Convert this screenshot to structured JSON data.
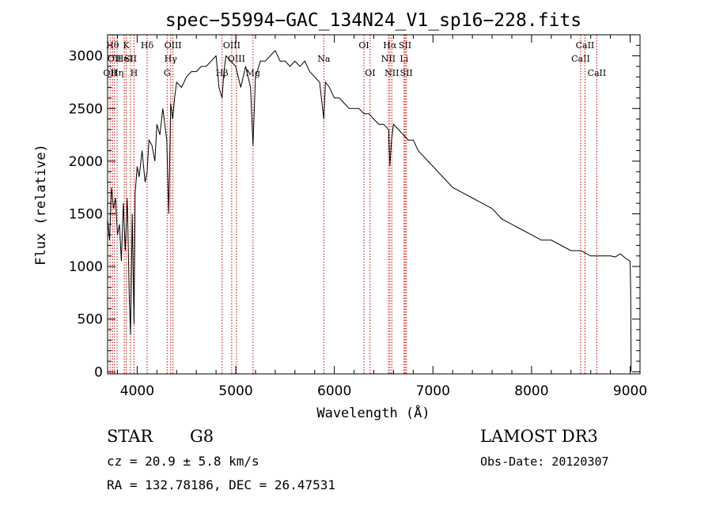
{
  "chart_data": {
    "type": "line",
    "title": "spec−55994−GAC_134N24_V1_sp16−228.fits",
    "xlabel": "Wavelength (Å)",
    "ylabel": "Flux (relative)",
    "xlim": [
      3700,
      9100
    ],
    "ylim": [
      -20,
      3200
    ],
    "xticks": [
      4000,
      5000,
      6000,
      7000,
      8000,
      9000
    ],
    "yticks": [
      0,
      500,
      1000,
      1500,
      2000,
      2500,
      3000
    ],
    "grid": false,
    "series": [
      {
        "name": "spectrum",
        "x": [
          3700,
          3720,
          3740,
          3760,
          3780,
          3800,
          3820,
          3840,
          3860,
          3880,
          3900,
          3920,
          3933,
          3950,
          3968,
          3980,
          4000,
          4020,
          4050,
          4080,
          4101,
          4120,
          4150,
          4180,
          4200,
          4230,
          4260,
          4300,
          4320,
          4340,
          4360,
          4380,
          4400,
          4450,
          4500,
          4550,
          4600,
          4650,
          4700,
          4750,
          4800,
          4830,
          4861,
          4880,
          4900,
          4950,
          5000,
          5050,
          5100,
          5150,
          5175,
          5200,
          5250,
          5300,
          5350,
          5400,
          5450,
          5500,
          5550,
          5600,
          5650,
          5700,
          5750,
          5800,
          5850,
          5893,
          5910,
          5950,
          6000,
          6050,
          6100,
          6150,
          6200,
          6250,
          6300,
          6350,
          6400,
          6450,
          6500,
          6550,
          6563,
          6580,
          6600,
          6650,
          6700,
          6750,
          6800,
          6850,
          6900,
          6950,
          7000,
          7050,
          7100,
          7150,
          7200,
          7300,
          7400,
          7500,
          7600,
          7700,
          7800,
          7900,
          8000,
          8100,
          8200,
          8300,
          8400,
          8500,
          8600,
          8700,
          8800,
          8850,
          8900,
          8950,
          9000,
          9005,
          9010
        ],
        "y": [
          1450,
          1250,
          1750,
          1550,
          1650,
          1300,
          1400,
          1050,
          1600,
          1150,
          1650,
          700,
          350,
          1500,
          450,
          1700,
          1950,
          1850,
          2100,
          1800,
          1900,
          2200,
          2150,
          2000,
          2350,
          2250,
          2500,
          2200,
          1500,
          2550,
          2400,
          2600,
          2750,
          2700,
          2800,
          2850,
          2850,
          2900,
          2900,
          2950,
          3000,
          2700,
          2600,
          2850,
          3000,
          2950,
          2900,
          2700,
          2900,
          2700,
          2150,
          2800,
          2950,
          2950,
          3000,
          3050,
          2950,
          2950,
          2900,
          2950,
          2900,
          2950,
          2850,
          2800,
          2750,
          2400,
          2750,
          2700,
          2600,
          2600,
          2550,
          2500,
          2500,
          2500,
          2450,
          2450,
          2400,
          2350,
          2350,
          2300,
          1950,
          2200,
          2350,
          2300,
          2250,
          2200,
          2200,
          2100,
          2050,
          2000,
          1950,
          1900,
          1850,
          1800,
          1750,
          1700,
          1650,
          1600,
          1550,
          1450,
          1400,
          1350,
          1300,
          1250,
          1250,
          1200,
          1150,
          1150,
          1100,
          1100,
          1100,
          1090,
          1120,
          1080,
          1050,
          780,
          0
        ]
      }
    ],
    "line_markers": [
      {
        "wavelength": 3726,
        "label": "OII",
        "row": 2
      },
      {
        "wavelength": 3750,
        "label": "Hθ",
        "row": 0
      },
      {
        "wavelength": 3770,
        "label": "OII",
        "row": 1
      },
      {
        "wavelength": 3797,
        "label": "Hη",
        "row": 2
      },
      {
        "wavelength": 3869,
        "label": "HeI",
        "row": 1
      },
      {
        "wavelength": 3889,
        "label": "K",
        "row": 0
      },
      {
        "wavelength": 3933,
        "label": "SII",
        "row": 1
      },
      {
        "wavelength": 3968,
        "label": "H",
        "row": 2
      },
      {
        "wavelength": 4101,
        "label": "Hδ",
        "row": 0
      },
      {
        "wavelength": 4304,
        "label": "G",
        "row": 2
      },
      {
        "wavelength": 4340,
        "label": "Hγ",
        "row": 1
      },
      {
        "wavelength": 4363,
        "label": "OIII",
        "row": 0
      },
      {
        "wavelength": 4861,
        "label": "Hβ",
        "row": 2
      },
      {
        "wavelength": 4959,
        "label": "OIII",
        "row": 0
      },
      {
        "wavelength": 5007,
        "label": "OIII",
        "row": 1
      },
      {
        "wavelength": 5175,
        "label": "Mg",
        "row": 2
      },
      {
        "wavelength": 5893,
        "label": "Na",
        "row": 1
      },
      {
        "wavelength": 6300,
        "label": "OI",
        "row": 0
      },
      {
        "wavelength": 6363,
        "label": "OI",
        "row": 2
      },
      {
        "wavelength": 6548,
        "label": "NII",
        "row": 1
      },
      {
        "wavelength": 6563,
        "label": "Hα",
        "row": 0
      },
      {
        "wavelength": 6583,
        "label": "NII",
        "row": 2
      },
      {
        "wavelength": 6707,
        "label": "Li",
        "row": 1
      },
      {
        "wavelength": 6717,
        "label": "SII",
        "row": 0
      },
      {
        "wavelength": 6731,
        "label": "SII",
        "row": 2
      },
      {
        "wavelength": 8498,
        "label": "CaII",
        "row": 1
      },
      {
        "wavelength": 8542,
        "label": "CaII",
        "row": 0
      },
      {
        "wavelength": 8662,
        "label": "CaII",
        "row": 2
      }
    ],
    "marker_color": "#cc0000",
    "line_color": "#000000"
  },
  "info": {
    "object_class": "STAR",
    "subclass": "G8",
    "survey": "LAMOST DR3",
    "redshift": "cz = 20.9 ± 5.8 km/s",
    "obs_date": "Obs-Date: 20120307",
    "coords": "RA = 132.78186, DEC =  26.47531"
  }
}
